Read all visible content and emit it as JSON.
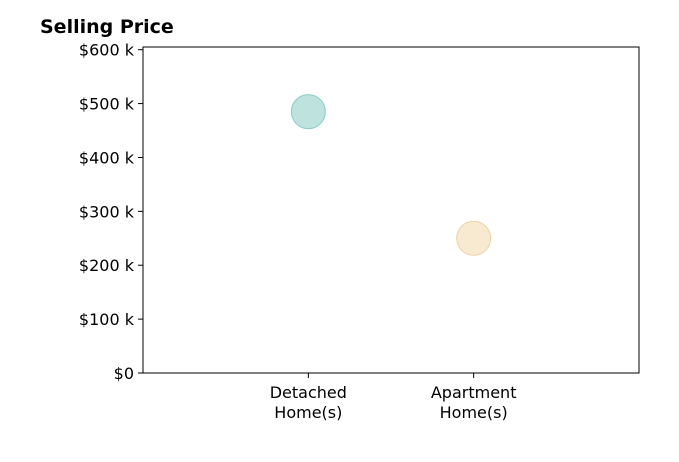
{
  "chart_data": {
    "type": "scatter",
    "title": "Selling Price",
    "xlabel": "",
    "ylabel": "",
    "categories": [
      "Detached\nHome(s)",
      "Apartment\nHome(s)"
    ],
    "values": [
      485000,
      250000
    ],
    "colors": [
      "#a8d8d3",
      "#f5e2c2"
    ],
    "point_edge_colors": [
      "#8ccac4",
      "#ecd3a8"
    ],
    "ylim": [
      0,
      605000
    ],
    "y_ticks": [
      0,
      100000,
      200000,
      300000,
      400000,
      500000,
      600000
    ],
    "y_tick_labels": [
      "$0",
      "$100 k",
      "$200 k",
      "$300 k",
      "$400 k",
      "$500 k",
      "$600 k"
    ],
    "x_positions": [
      1,
      2
    ],
    "xlim": [
      0,
      3
    ],
    "grid": false,
    "legend": "none"
  }
}
